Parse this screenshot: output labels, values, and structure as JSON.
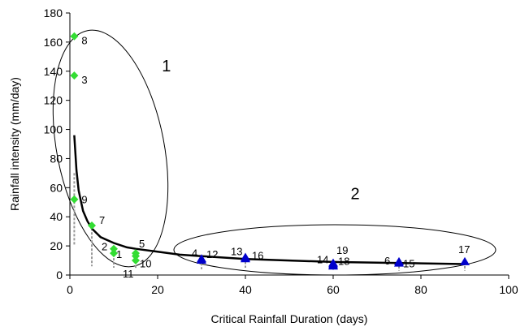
{
  "chart_data": {
    "type": "scatter",
    "title": "",
    "xlabel": "Critical Rainfall Duration (days)",
    "ylabel": "Rainfall intensity (mm/day)",
    "xlim": [
      0,
      100
    ],
    "ylim": [
      0,
      180
    ],
    "xticks": [
      "0",
      "20",
      "40",
      "60",
      "80",
      "100"
    ],
    "yticks": [
      "0",
      "20",
      "40",
      "60",
      "80",
      "100",
      "120",
      "140",
      "160",
      "180"
    ],
    "grid": false,
    "legend": "none",
    "colors": {
      "group1": "#33dd33",
      "group2": "#0000cc",
      "curve": "#000000",
      "bars": "#999999"
    },
    "series": [
      {
        "marker": "diamond",
        "points": [
          {
            "label": "8",
            "x": 1,
            "y": 164
          },
          {
            "label": "3",
            "x": 1,
            "y": 137
          },
          {
            "label": "9",
            "x": 1,
            "y": 52
          },
          {
            "label": "7",
            "x": 5,
            "y": 34
          },
          {
            "label": "2",
            "x": 10,
            "y": 18
          },
          {
            "label": "1",
            "x": 10,
            "y": 15
          },
          {
            "label": "11",
            "x": 15,
            "y": 10
          },
          {
            "label": "10",
            "x": 15,
            "y": 13
          },
          {
            "label": "5",
            "x": 15,
            "y": 15
          }
        ]
      },
      {
        "marker": "triangle",
        "points": [
          {
            "label": "4",
            "x": 30,
            "y": 11
          },
          {
            "label": "12",
            "x": 30,
            "y": 10
          },
          {
            "label": "13",
            "x": 40,
            "y": 12
          },
          {
            "label": "16",
            "x": 40,
            "y": 11
          },
          {
            "label": "14",
            "x": 60,
            "y": 8
          },
          {
            "label": "18",
            "x": 60,
            "y": 7
          },
          {
            "label": "19",
            "x": 60,
            "y": 6
          },
          {
            "label": "6",
            "x": 75,
            "y": 9
          },
          {
            "label": "15",
            "x": 75,
            "y": 8
          },
          {
            "label": "17",
            "x": 90,
            "y": 9
          }
        ]
      }
    ],
    "fit_curve": {
      "x": [
        1,
        1.5,
        2,
        3,
        4,
        5,
        7,
        10,
        13,
        15,
        20,
        25,
        30,
        40,
        50,
        60,
        70,
        80,
        90
      ],
      "y": [
        96,
        72,
        58,
        44,
        37,
        32,
        26,
        22,
        19,
        18,
        16,
        14,
        13,
        11,
        10,
        9,
        8.5,
        8,
        7.5
      ]
    },
    "range_bars": [
      {
        "x": 1,
        "low": 20,
        "high": 70
      },
      {
        "x": 5,
        "low": 6,
        "high": 35
      },
      {
        "x": 10,
        "low": 5,
        "high": 20
      },
      {
        "x": 15,
        "low": 4,
        "high": 15
      },
      {
        "x": 30,
        "low": 4,
        "high": 11
      },
      {
        "x": 40,
        "low": 5,
        "high": 12
      },
      {
        "x": 60,
        "low": 3,
        "high": 8
      },
      {
        "x": 75,
        "low": 3,
        "high": 9
      },
      {
        "x": 90,
        "low": 3,
        "high": 9
      }
    ],
    "group_labels": [
      {
        "text": "1",
        "x": 22,
        "y": 140
      },
      {
        "text": "2",
        "x": 65,
        "y": 52
      }
    ]
  }
}
